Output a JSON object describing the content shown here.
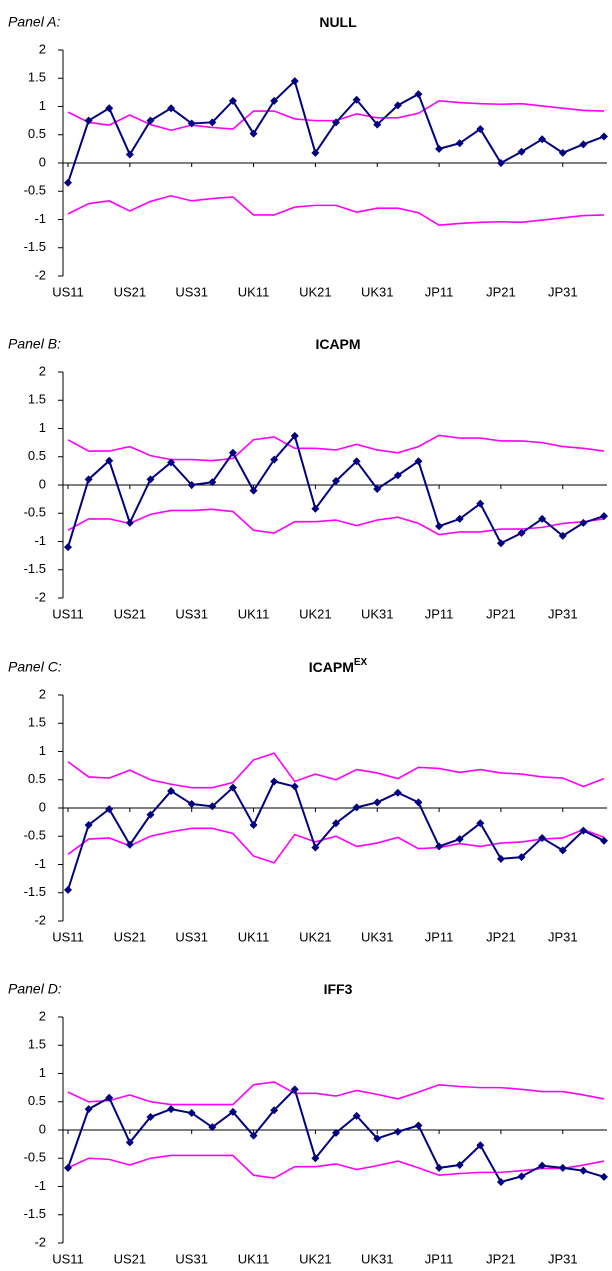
{
  "chart_data": [
    {
      "type": "line",
      "panel_label": "Panel A:",
      "title": "NULL",
      "categories": [
        "US11",
        null,
        null,
        "US21",
        null,
        null,
        "US31",
        null,
        null,
        "UK11",
        null,
        null,
        "UK21",
        null,
        null,
        "UK31",
        null,
        null,
        "JP11",
        null,
        null,
        "JP21",
        null,
        null,
        "JP31",
        null,
        null
      ],
      "ylim": [
        -2,
        2
      ],
      "yticks": [
        -2,
        -1.5,
        -1,
        -0.5,
        0,
        0.5,
        1,
        1.5,
        2
      ],
      "series": [
        {
          "color": "#ff00ff",
          "values": [
            0.9,
            0.72,
            0.67,
            0.85,
            0.68,
            0.58,
            0.67,
            0.63,
            0.6,
            0.92,
            0.92,
            0.78,
            0.75,
            0.75,
            0.87,
            0.8,
            0.8,
            0.88,
            1.1,
            1.07,
            1.05,
            1.04,
            1.05,
            1.01,
            0.97,
            0.93,
            0.92
          ]
        },
        {
          "color": "#ff00ff",
          "values": [
            -0.9,
            -0.72,
            -0.67,
            -0.85,
            -0.68,
            -0.58,
            -0.67,
            -0.63,
            -0.6,
            -0.92,
            -0.92,
            -0.78,
            -0.75,
            -0.75,
            -0.87,
            -0.8,
            -0.8,
            -0.88,
            -1.1,
            -1.07,
            -1.05,
            -1.04,
            -1.05,
            -1.01,
            -0.97,
            -0.93,
            -0.92
          ]
        },
        {
          "color": "#000080",
          "marker": "diamond",
          "values": [
            -0.35,
            0.75,
            0.97,
            0.15,
            0.75,
            0.97,
            0.7,
            0.72,
            1.1,
            0.52,
            1.1,
            1.45,
            0.18,
            0.72,
            1.12,
            0.68,
            1.02,
            1.22,
            0.25,
            0.35,
            0.6,
            0.0,
            0.2,
            0.42,
            0.18,
            0.33,
            0.47
          ]
        }
      ]
    },
    {
      "type": "line",
      "panel_label": "Panel B:",
      "title": "ICAPM",
      "categories": [
        "US11",
        null,
        null,
        "US21",
        null,
        null,
        "US31",
        null,
        null,
        "UK11",
        null,
        null,
        "UK21",
        null,
        null,
        "UK31",
        null,
        null,
        "JP11",
        null,
        null,
        "JP21",
        null,
        null,
        "JP31",
        null,
        null
      ],
      "ylim": [
        -2,
        2
      ],
      "yticks": [
        -2,
        -1.5,
        -1,
        -0.5,
        0,
        0.5,
        1,
        1.5,
        2
      ],
      "series": [
        {
          "color": "#ff00ff",
          "values": [
            0.8,
            0.6,
            0.6,
            0.68,
            0.52,
            0.45,
            0.45,
            0.43,
            0.47,
            0.8,
            0.85,
            0.65,
            0.65,
            0.62,
            0.72,
            0.62,
            0.57,
            0.68,
            0.88,
            0.83,
            0.83,
            0.78,
            0.78,
            0.75,
            0.68,
            0.65,
            0.6
          ]
        },
        {
          "color": "#ff00ff",
          "values": [
            -0.8,
            -0.6,
            -0.6,
            -0.68,
            -0.52,
            -0.45,
            -0.45,
            -0.43,
            -0.47,
            -0.8,
            -0.85,
            -0.65,
            -0.65,
            -0.62,
            -0.72,
            -0.62,
            -0.57,
            -0.68,
            -0.88,
            -0.83,
            -0.83,
            -0.78,
            -0.78,
            -0.75,
            -0.68,
            -0.65,
            -0.6
          ]
        },
        {
          "color": "#000080",
          "marker": "diamond",
          "values": [
            -1.1,
            0.1,
            0.43,
            -0.67,
            0.1,
            0.4,
            0.0,
            0.05,
            0.57,
            -0.1,
            0.45,
            0.87,
            -0.42,
            0.07,
            0.42,
            -0.07,
            0.17,
            0.42,
            -0.73,
            -0.6,
            -0.33,
            -1.03,
            -0.85,
            -0.6,
            -0.9,
            -0.67,
            -0.55
          ]
        }
      ]
    },
    {
      "type": "line",
      "panel_label": "Panel C:",
      "title": "ICAPM",
      "title_superscript": "EX",
      "categories": [
        "US11",
        null,
        null,
        "US21",
        null,
        null,
        "US31",
        null,
        null,
        "UK11",
        null,
        null,
        "UK21",
        null,
        null,
        "UK31",
        null,
        null,
        "JP11",
        null,
        null,
        "JP21",
        null,
        null,
        "JP31",
        null,
        null
      ],
      "ylim": [
        -2,
        2
      ],
      "yticks": [
        -2,
        -1.5,
        -1,
        -0.5,
        0,
        0.5,
        1,
        1.5,
        2
      ],
      "series": [
        {
          "color": "#ff00ff",
          "values": [
            0.82,
            0.55,
            0.53,
            0.67,
            0.5,
            0.42,
            0.36,
            0.36,
            0.45,
            0.85,
            0.97,
            0.47,
            0.6,
            0.5,
            0.68,
            0.62,
            0.52,
            0.72,
            0.7,
            0.63,
            0.68,
            0.62,
            0.6,
            0.55,
            0.53,
            0.38,
            0.52
          ]
        },
        {
          "color": "#ff00ff",
          "values": [
            -0.82,
            -0.55,
            -0.53,
            -0.67,
            -0.5,
            -0.42,
            -0.36,
            -0.36,
            -0.45,
            -0.85,
            -0.97,
            -0.47,
            -0.6,
            -0.5,
            -0.68,
            -0.62,
            -0.52,
            -0.72,
            -0.7,
            -0.63,
            -0.68,
            -0.62,
            -0.6,
            -0.55,
            -0.53,
            -0.38,
            -0.52
          ]
        },
        {
          "color": "#000080",
          "marker": "diamond",
          "values": [
            -1.45,
            -0.3,
            -0.02,
            -0.65,
            -0.12,
            0.3,
            0.07,
            0.03,
            0.36,
            -0.3,
            0.47,
            0.38,
            -0.7,
            -0.27,
            0.01,
            0.1,
            0.27,
            0.1,
            -0.68,
            -0.55,
            -0.27,
            -0.9,
            -0.87,
            -0.53,
            -0.75,
            -0.4,
            -0.58
          ]
        }
      ]
    },
    {
      "type": "line",
      "panel_label": "Panel D:",
      "title": "IFF3",
      "categories": [
        "US11",
        null,
        null,
        "US21",
        null,
        null,
        "US31",
        null,
        null,
        "UK11",
        null,
        null,
        "UK21",
        null,
        null,
        "UK31",
        null,
        null,
        "JP11",
        null,
        null,
        "JP21",
        null,
        null,
        "JP31",
        null,
        null
      ],
      "ylim": [
        -2,
        2
      ],
      "yticks": [
        -2,
        -1.5,
        -1,
        -0.5,
        0,
        0.5,
        1,
        1.5,
        2
      ],
      "series": [
        {
          "color": "#ff00ff",
          "values": [
            0.67,
            0.5,
            0.52,
            0.62,
            0.5,
            0.45,
            0.45,
            0.45,
            0.45,
            0.8,
            0.85,
            0.65,
            0.65,
            0.6,
            0.7,
            0.63,
            0.55,
            0.67,
            0.8,
            0.77,
            0.75,
            0.75,
            0.72,
            0.68,
            0.68,
            0.62,
            0.55
          ]
        },
        {
          "color": "#ff00ff",
          "values": [
            -0.67,
            -0.5,
            -0.52,
            -0.62,
            -0.5,
            -0.45,
            -0.45,
            -0.45,
            -0.45,
            -0.8,
            -0.85,
            -0.65,
            -0.65,
            -0.6,
            -0.7,
            -0.63,
            -0.55,
            -0.67,
            -0.8,
            -0.77,
            -0.75,
            -0.75,
            -0.72,
            -0.68,
            -0.68,
            -0.62,
            -0.55
          ]
        },
        {
          "color": "#000080",
          "marker": "diamond",
          "values": [
            -0.67,
            0.37,
            0.57,
            -0.22,
            0.23,
            0.37,
            0.3,
            0.05,
            0.32,
            -0.1,
            0.35,
            0.72,
            -0.5,
            -0.05,
            0.25,
            -0.15,
            -0.03,
            0.08,
            -0.67,
            -0.62,
            -0.27,
            -0.92,
            -0.82,
            -0.63,
            -0.67,
            -0.72,
            -0.83
          ]
        }
      ]
    }
  ]
}
